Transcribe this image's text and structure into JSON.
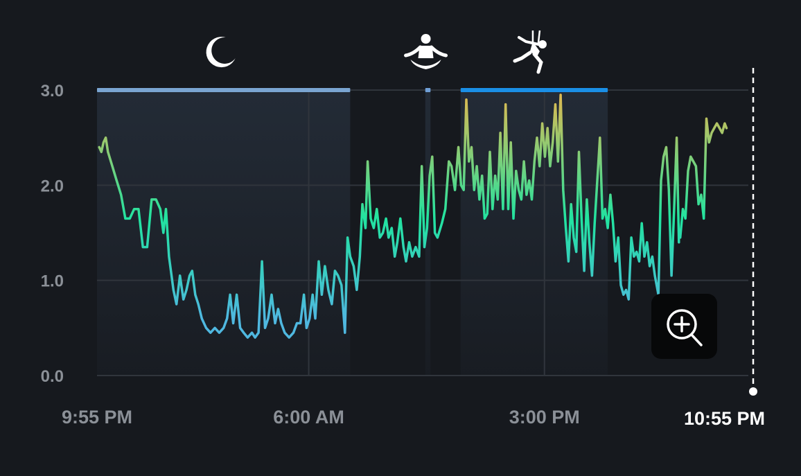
{
  "chart_data": {
    "type": "line",
    "title": "",
    "xlabel": "",
    "ylabel": "",
    "ylim": [
      0,
      3
    ],
    "y_ticks": [
      "0.0",
      "1.0",
      "2.0",
      "3.0"
    ],
    "x_ticks": [
      {
        "label": "9:55 PM",
        "minutes": 0
      },
      {
        "label": "6:00 AM",
        "minutes": 485
      },
      {
        "label": "3:00 PM",
        "minutes": 1025
      }
    ],
    "x_end_label": "10:55 PM",
    "x_range_minutes": [
      0,
      1500
    ],
    "grid": true,
    "gradient_colors": {
      "low": "#4fb8e0",
      "mid": "#22e3a0",
      "high": "#e6b84e"
    },
    "activities": [
      {
        "icon": "moon-icon",
        "start_minutes": 0,
        "end_minutes": 580,
        "color": "#7aa5d2"
      },
      {
        "icon": "meditation-icon",
        "start_minutes": 752,
        "end_minutes": 764,
        "color": "#6f9fd6"
      },
      {
        "icon": "climbing-icon",
        "start_minutes": 833,
        "end_minutes": 1170,
        "color": "#1a8fe6"
      }
    ],
    "series": [
      {
        "values": [
          [
            5,
            2.4
          ],
          [
            10,
            2.35
          ],
          [
            15,
            2.45
          ],
          [
            20,
            2.5
          ],
          [
            25,
            2.35
          ],
          [
            35,
            2.2
          ],
          [
            45,
            2.05
          ],
          [
            55,
            1.9
          ],
          [
            65,
            1.65
          ],
          [
            75,
            1.65
          ],
          [
            85,
            1.75
          ],
          [
            95,
            1.75
          ],
          [
            105,
            1.35
          ],
          [
            115,
            1.35
          ],
          [
            125,
            1.85
          ],
          [
            135,
            1.85
          ],
          [
            145,
            1.75
          ],
          [
            152,
            1.5
          ],
          [
            158,
            1.75
          ],
          [
            165,
            1.25
          ],
          [
            175,
            0.9
          ],
          [
            182,
            0.75
          ],
          [
            190,
            1.05
          ],
          [
            198,
            0.8
          ],
          [
            205,
            0.9
          ],
          [
            212,
            1.05
          ],
          [
            218,
            1.1
          ],
          [
            225,
            0.85
          ],
          [
            232,
            0.75
          ],
          [
            240,
            0.6
          ],
          [
            250,
            0.5
          ],
          [
            260,
            0.45
          ],
          [
            270,
            0.5
          ],
          [
            280,
            0.45
          ],
          [
            290,
            0.5
          ],
          [
            298,
            0.6
          ],
          [
            305,
            0.85
          ],
          [
            312,
            0.55
          ],
          [
            320,
            0.85
          ],
          [
            328,
            0.5
          ],
          [
            336,
            0.45
          ],
          [
            345,
            0.4
          ],
          [
            355,
            0.45
          ],
          [
            362,
            0.4
          ],
          [
            370,
            0.45
          ],
          [
            378,
            1.2
          ],
          [
            385,
            0.5
          ],
          [
            392,
            0.6
          ],
          [
            400,
            0.85
          ],
          [
            408,
            0.55
          ],
          [
            415,
            0.7
          ],
          [
            422,
            0.55
          ],
          [
            430,
            0.45
          ],
          [
            440,
            0.4
          ],
          [
            450,
            0.45
          ],
          [
            458,
            0.55
          ],
          [
            466,
            0.55
          ],
          [
            474,
            0.85
          ],
          [
            480,
            0.5
          ],
          [
            487,
            0.6
          ],
          [
            494,
            0.85
          ],
          [
            500,
            0.6
          ],
          [
            508,
            1.2
          ],
          [
            515,
            0.85
          ],
          [
            522,
            1.15
          ],
          [
            530,
            0.9
          ],
          [
            538,
            0.75
          ],
          [
            545,
            1.1
          ],
          [
            552,
            1.05
          ],
          [
            560,
            0.95
          ],
          [
            568,
            0.45
          ],
          [
            574,
            1.45
          ],
          [
            580,
            1.25
          ],
          [
            588,
            1.15
          ],
          [
            595,
            0.9
          ],
          [
            602,
            1.25
          ],
          [
            608,
            1.8
          ],
          [
            615,
            1.55
          ],
          [
            620,
            2.25
          ],
          [
            627,
            1.65
          ],
          [
            634,
            1.55
          ],
          [
            641,
            1.75
          ],
          [
            648,
            1.45
          ],
          [
            655,
            1.5
          ],
          [
            662,
            1.65
          ],
          [
            668,
            1.45
          ],
          [
            675,
            1.55
          ],
          [
            682,
            1.25
          ],
          [
            688,
            1.4
          ],
          [
            695,
            1.65
          ],
          [
            702,
            1.35
          ],
          [
            708,
            1.2
          ],
          [
            715,
            1.4
          ],
          [
            722,
            1.25
          ],
          [
            730,
            1.35
          ],
          [
            738,
            1.25
          ],
          [
            744,
            2.2
          ],
          [
            750,
            1.35
          ],
          [
            756,
            1.55
          ],
          [
            762,
            2.1
          ],
          [
            768,
            2.3
          ],
          [
            774,
            1.5
          ],
          [
            780,
            1.45
          ],
          [
            790,
            1.6
          ],
          [
            798,
            1.75
          ],
          [
            806,
            2.25
          ],
          [
            812,
            2.2
          ],
          [
            820,
            1.95
          ],
          [
            828,
            2.4
          ],
          [
            834,
            2.0
          ],
          [
            840,
            1.95
          ],
          [
            846,
            2.9
          ],
          [
            852,
            2.25
          ],
          [
            858,
            2.4
          ],
          [
            864,
            1.95
          ],
          [
            870,
            2.2
          ],
          [
            876,
            1.85
          ],
          [
            882,
            2.1
          ],
          [
            888,
            1.65
          ],
          [
            894,
            1.7
          ],
          [
            900,
            2.35
          ],
          [
            906,
            1.75
          ],
          [
            912,
            2.1
          ],
          [
            918,
            1.85
          ],
          [
            924,
            2.55
          ],
          [
            930,
            1.75
          ],
          [
            936,
            2.85
          ],
          [
            942,
            1.75
          ],
          [
            948,
            2.45
          ],
          [
            954,
            1.65
          ],
          [
            960,
            2.15
          ],
          [
            966,
            1.95
          ],
          [
            972,
            1.85
          ],
          [
            978,
            2.25
          ],
          [
            984,
            1.9
          ],
          [
            990,
            2.05
          ],
          [
            996,
            1.85
          ],
          [
            1002,
            2.25
          ],
          [
            1008,
            2.5
          ],
          [
            1014,
            2.2
          ],
          [
            1020,
            2.65
          ],
          [
            1026,
            2.3
          ],
          [
            1032,
            2.6
          ],
          [
            1038,
            2.2
          ],
          [
            1044,
            2.45
          ],
          [
            1050,
            2.85
          ],
          [
            1056,
            2.25
          ],
          [
            1062,
            2.95
          ],
          [
            1068,
            1.95
          ],
          [
            1074,
            1.55
          ],
          [
            1080,
            1.2
          ],
          [
            1086,
            1.8
          ],
          [
            1092,
            1.45
          ],
          [
            1098,
            1.3
          ],
          [
            1104,
            2.35
          ],
          [
            1110,
            1.65
          ],
          [
            1116,
            1.1
          ],
          [
            1122,
            1.85
          ],
          [
            1128,
            1.4
          ],
          [
            1134,
            1.05
          ],
          [
            1140,
            1.6
          ],
          [
            1146,
            2.05
          ],
          [
            1152,
            2.5
          ],
          [
            1158,
            1.65
          ],
          [
            1164,
            1.75
          ],
          [
            1170,
            1.55
          ],
          [
            1176,
            1.9
          ],
          [
            1182,
            1.6
          ],
          [
            1188,
            1.2
          ],
          [
            1194,
            1.45
          ],
          [
            1200,
            0.95
          ],
          [
            1206,
            0.85
          ],
          [
            1212,
            0.9
          ],
          [
            1218,
            0.8
          ],
          [
            1224,
            1.45
          ],
          [
            1230,
            1.25
          ],
          [
            1236,
            1.3
          ],
          [
            1242,
            1.2
          ],
          [
            1248,
            1.6
          ],
          [
            1254,
            1.25
          ],
          [
            1260,
            1.4
          ],
          [
            1266,
            1.15
          ],
          [
            1272,
            1.25
          ],
          [
            1278,
            1.05
          ],
          [
            1286,
            0.85
          ],
          [
            1292,
            2.05
          ],
          [
            1298,
            2.3
          ],
          [
            1304,
            2.4
          ],
          [
            1310,
            1.95
          ],
          [
            1316,
            1.05
          ],
          [
            1322,
            1.75
          ],
          [
            1328,
            2.5
          ],
          [
            1333,
            1.4
          ]
        ]
      },
      {
        "values": [
          [
            1336,
            1.45
          ],
          [
            1342,
            1.75
          ],
          [
            1348,
            1.65
          ],
          [
            1354,
            2.15
          ],
          [
            1360,
            2.3
          ],
          [
            1366,
            2.25
          ],
          [
            1372,
            2.2
          ],
          [
            1378,
            1.8
          ],
          [
            1384,
            1.9
          ],
          [
            1390,
            1.65
          ],
          [
            1396,
            2.7
          ],
          [
            1402,
            2.45
          ],
          [
            1408,
            2.55
          ],
          [
            1414,
            2.6
          ],
          [
            1420,
            2.65
          ],
          [
            1426,
            2.6
          ],
          [
            1432,
            2.55
          ],
          [
            1438,
            2.65
          ],
          [
            1442,
            2.6
          ]
        ]
      }
    ]
  },
  "zoom": {
    "icon": "zoom-in-icon"
  }
}
